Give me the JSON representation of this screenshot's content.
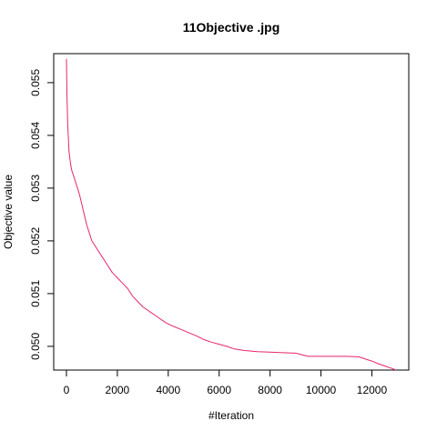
{
  "chart_data": {
    "type": "line",
    "title": "11Objective .jpg",
    "xlabel": "#Iteration",
    "ylabel": "Objective value",
    "xlim": [
      -500,
      13450
    ],
    "ylim": [
      0.04955,
      0.05555
    ],
    "x_ticks": [
      0,
      2000,
      4000,
      6000,
      8000,
      10000,
      12000
    ],
    "x_tick_labels": [
      "0",
      "2000",
      "4000",
      "6000",
      "8000",
      "10000",
      "12000"
    ],
    "y_ticks": [
      0.05,
      0.051,
      0.052,
      0.053,
      0.054,
      0.055
    ],
    "y_tick_labels": [
      "0.050",
      "0.051",
      "0.052",
      "0.053",
      "0.054",
      "0.055"
    ],
    "grid": false,
    "series": [
      {
        "name": "objective",
        "color": "#e8256f",
        "x": [
          0,
          20,
          50,
          100,
          150,
          200,
          300,
          400,
          500,
          600,
          700,
          800,
          900,
          1000,
          1200,
          1400,
          1600,
          1800,
          2000,
          2200,
          2400,
          2600,
          2800,
          3000,
          3300,
          3600,
          3900,
          4200,
          4500,
          4800,
          5100,
          5400,
          5700,
          6000,
          6300,
          6600,
          7000,
          7500,
          8000,
          8500,
          9000,
          9500,
          10000,
          10500,
          11000,
          11500,
          11800,
          12000,
          12200,
          12500,
          12800,
          12950
        ],
        "values": [
          0.05545,
          0.0548,
          0.0542,
          0.0537,
          0.0535,
          0.05335,
          0.0532,
          0.05305,
          0.0529,
          0.0527,
          0.0525,
          0.0523,
          0.05215,
          0.052,
          0.05185,
          0.0517,
          0.05155,
          0.0514,
          0.0513,
          0.0512,
          0.0511,
          0.05095,
          0.05085,
          0.05075,
          0.05065,
          0.05055,
          0.05045,
          0.05038,
          0.05032,
          0.05026,
          0.0502,
          0.05013,
          0.05008,
          0.05004,
          0.05,
          0.04995,
          0.04992,
          0.0499,
          0.04989,
          0.04988,
          0.04987,
          0.04981,
          0.04981,
          0.04981,
          0.04981,
          0.0498,
          0.04975,
          0.04972,
          0.04968,
          0.04963,
          0.04958,
          0.04955
        ]
      }
    ]
  }
}
